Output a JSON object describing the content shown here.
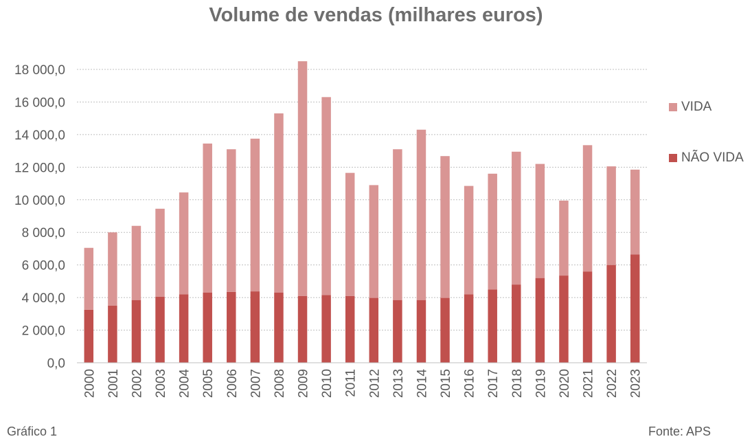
{
  "chart_data": {
    "type": "bar",
    "stacked": true,
    "title": "Volume de vendas (milhares euros)",
    "xlabel": "",
    "ylabel": "",
    "ylim": [
      0,
      18000
    ],
    "yticks": [
      0,
      2000,
      4000,
      6000,
      8000,
      10000,
      12000,
      14000,
      16000,
      18000
    ],
    "ytick_labels": [
      "0,0",
      "2 000,0",
      "4 000,0",
      "6 000,0",
      "8 000,0",
      "10 000,0",
      "12 000,0",
      "14 000,0",
      "16 000,0",
      "18 000,0"
    ],
    "grid": true,
    "legend_position": "right",
    "categories": [
      "2000",
      "2001",
      "2002",
      "2003",
      "2004",
      "2005",
      "2006",
      "2007",
      "2008",
      "2009",
      "2010",
      "2011",
      "2012",
      "2013",
      "2014",
      "2015",
      "2016",
      "2017",
      "2018",
      "2019",
      "2020",
      "2021",
      "2022",
      "2023"
    ],
    "series": [
      {
        "name": "NÃO VIDA",
        "color": "#c0504d",
        "values": [
          3250,
          3500,
          3850,
          4050,
          4200,
          4300,
          4350,
          4380,
          4300,
          4100,
          4150,
          4100,
          3980,
          3850,
          3850,
          3980,
          4200,
          4500,
          4800,
          5200,
          5350,
          5600,
          6000,
          6650
        ]
      },
      {
        "name": "VIDA",
        "color": "#d99594",
        "values": [
          3800,
          4500,
          4550,
          5400,
          6250,
          9150,
          8750,
          9370,
          11000,
          14400,
          12150,
          7550,
          6920,
          9250,
          10450,
          8700,
          6650,
          7100,
          8150,
          7000,
          4600,
          7750,
          6050,
          5200
        ]
      }
    ]
  },
  "caption": "Gráfico 1",
  "source": "Fonte: APS"
}
